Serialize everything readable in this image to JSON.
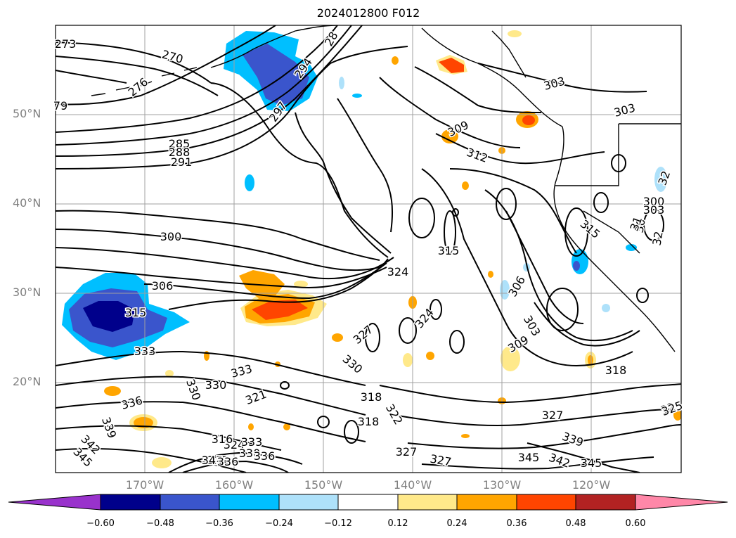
{
  "title": "2024012800 F012",
  "lat_labels": [
    "50°N",
    "40°N",
    "30°N",
    "20°N"
  ],
  "lon_labels": [
    "170°W",
    "160°W",
    "150°W",
    "140°W",
    "130°W",
    "120°W"
  ],
  "colorbar": {
    "ticks": [
      "−0.60",
      "−0.48",
      "−0.36",
      "−0.24",
      "−0.12",
      "0.12",
      "0.24",
      "0.36",
      "0.48",
      "0.60"
    ],
    "colors": [
      "#9932cc",
      "#00008b",
      "#3a55cc",
      "#00bfff",
      "#aee1fa",
      "#ffffff",
      "#ffe98a",
      "#ffa500",
      "#ff4500",
      "#b22222",
      "#ff87a8"
    ]
  },
  "contour_labels": [
    "273",
    "270",
    "276",
    "79",
    "285",
    "288",
    "291",
    "297",
    "294",
    "28",
    "303",
    "303",
    "309",
    "312",
    "300",
    "306",
    "315",
    "324",
    "324",
    "315",
    "327",
    "333",
    "330",
    "330",
    "333",
    "336",
    "339",
    "342",
    "345",
    "321",
    "318",
    "318",
    "322",
    "327",
    "327",
    "324",
    "330",
    "333",
    "336",
    "339",
    "345",
    "342",
    "345",
    "318",
    "306",
    "303",
    "309",
    "315",
    "300",
    "303",
    "30",
    "32",
    "327",
    "32",
    "32",
    "31",
    "321",
    "316",
    "330",
    "345",
    "336",
    "325"
  ]
}
